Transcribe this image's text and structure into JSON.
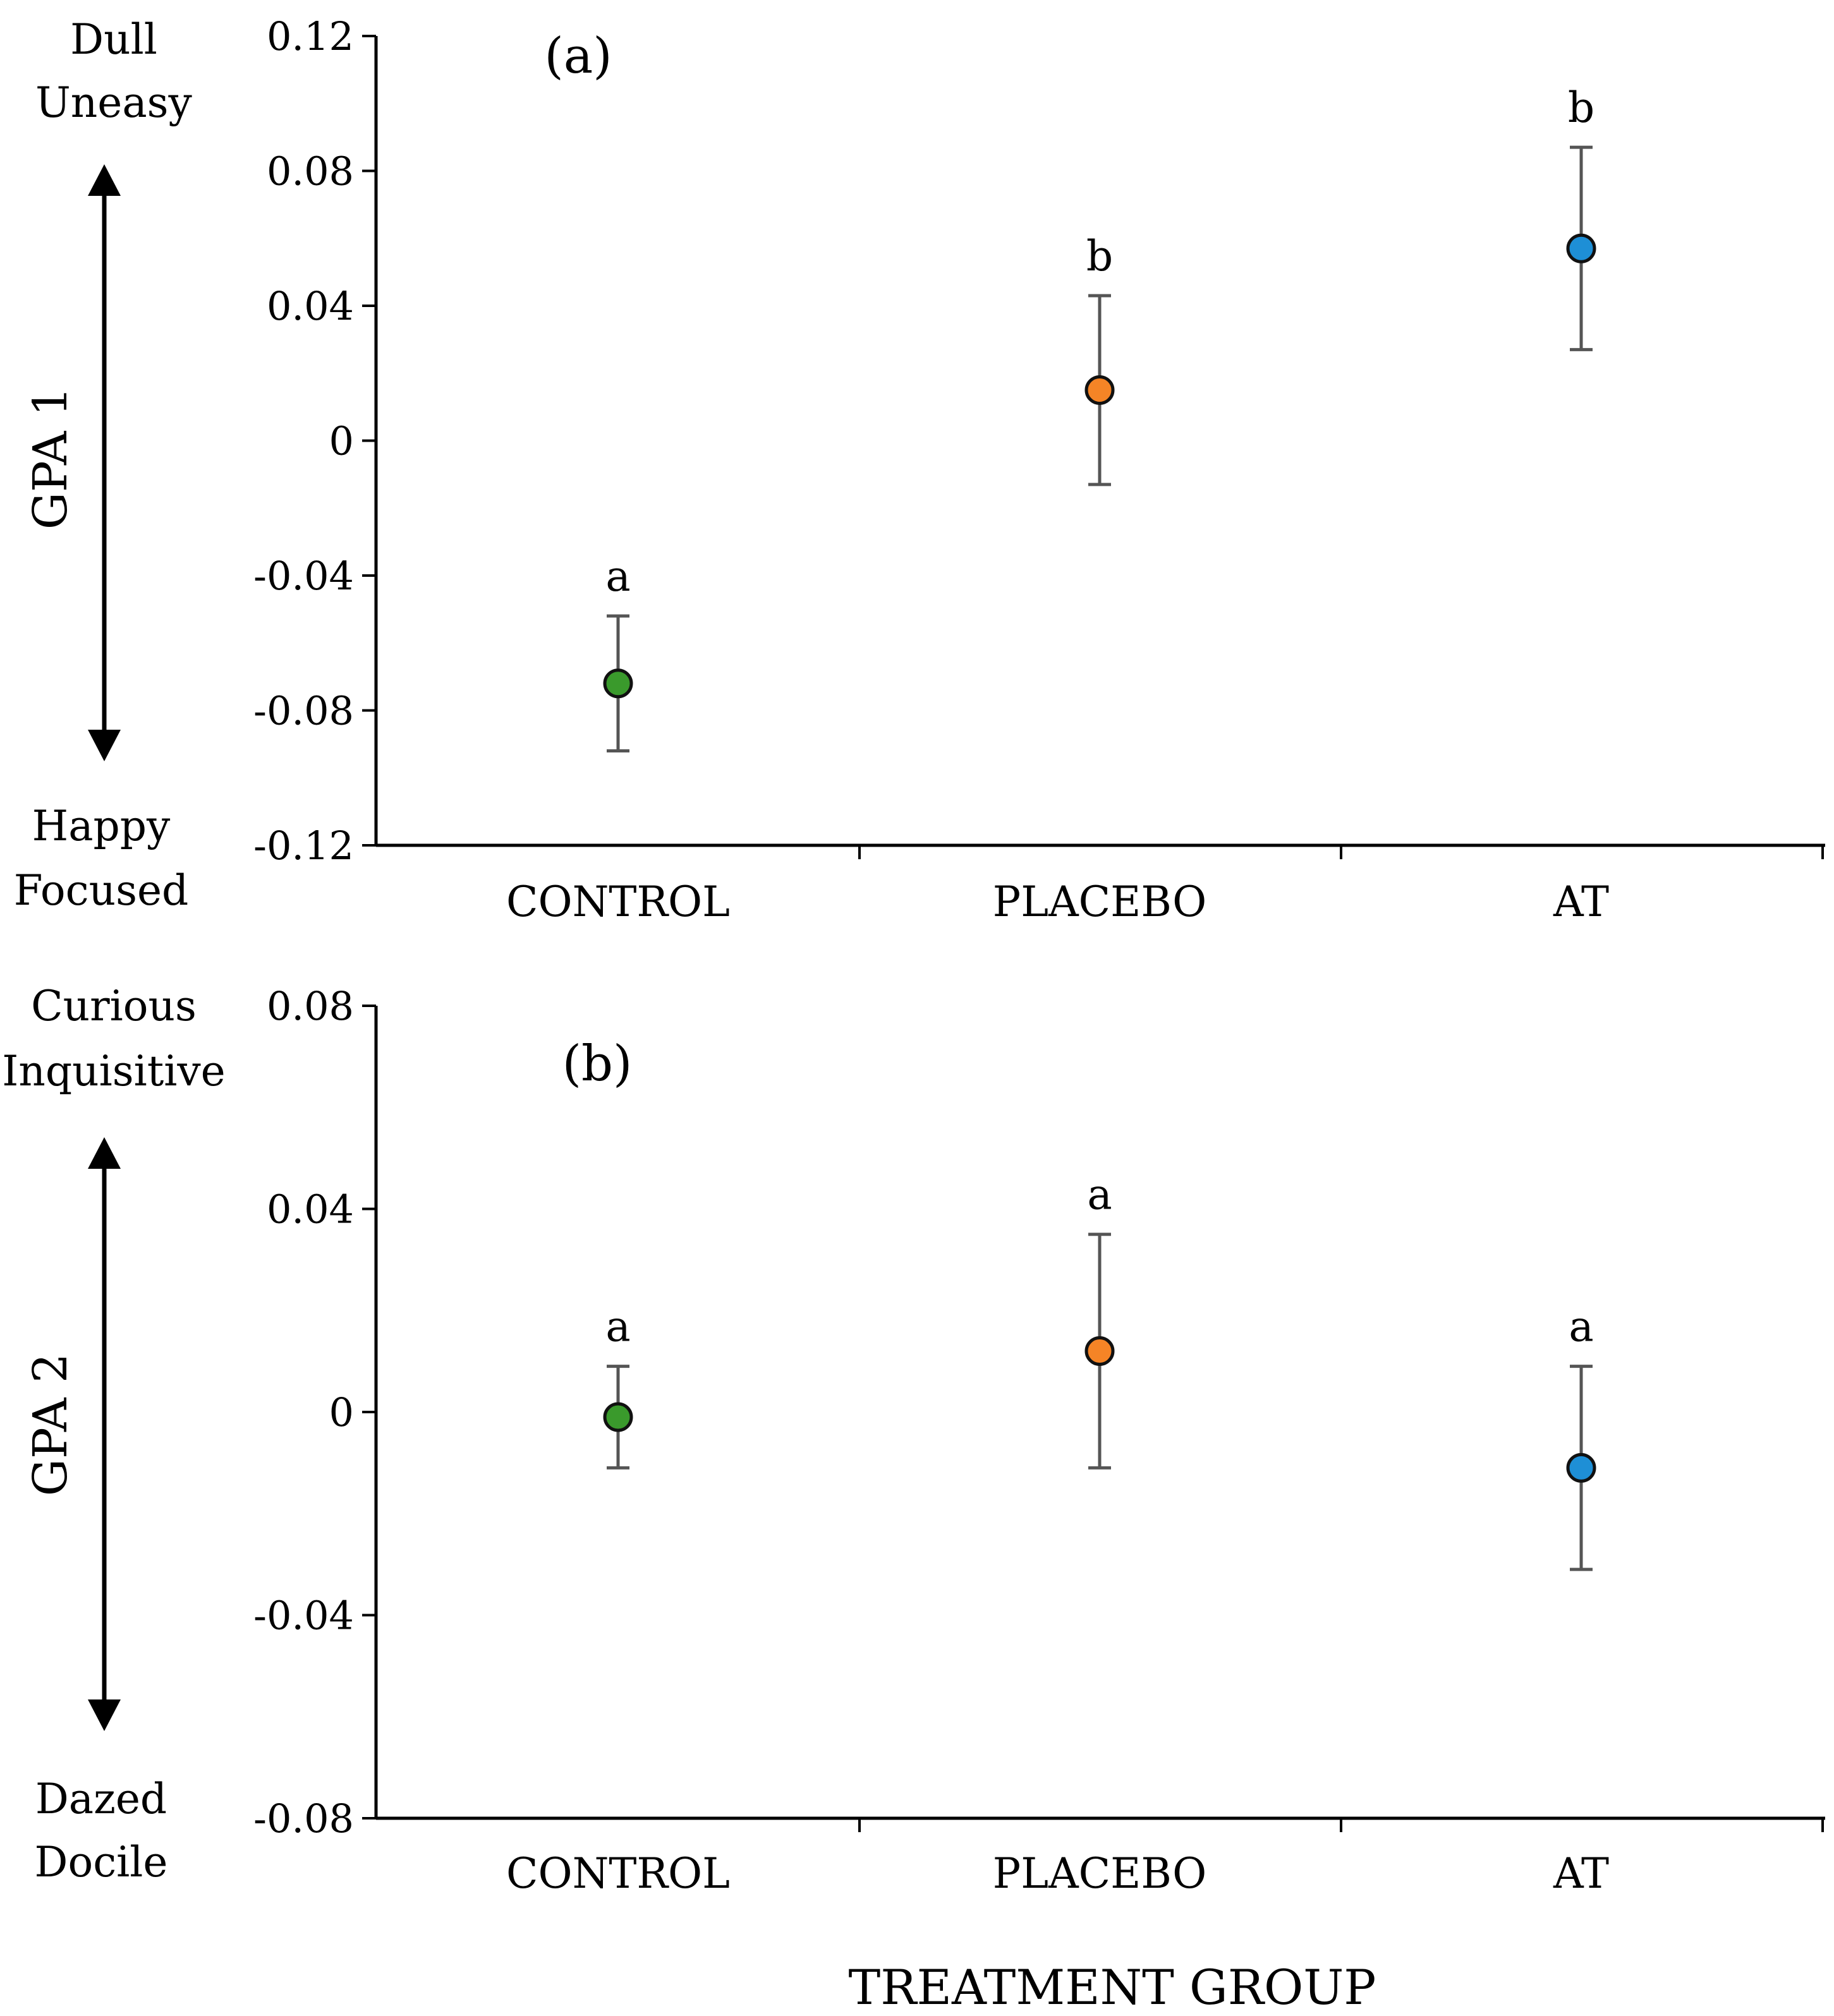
{
  "x_axis_title": "TREATMENT GROUP",
  "colors": {
    "CONTROL": "#3a9a2c",
    "PLACEBO": "#f58426",
    "AT": "#1e8fd6",
    "error_bar": "#555555",
    "axis": "#000000"
  },
  "chart_data": [
    {
      "type": "scatter",
      "panel_label": "(a)",
      "ylabel": "GPA 1",
      "ylim": [
        -0.12,
        0.12
      ],
      "yticks": [
        "0.12",
        "0.08",
        "0.04",
        "0",
        "-0.04",
        "-0.08",
        "-0.12"
      ],
      "pole_top": [
        "Dull",
        "Uneasy"
      ],
      "pole_bottom": [
        "Happy",
        "Focused"
      ],
      "categories": [
        "CONTROL",
        "PLACEBO",
        "AT"
      ],
      "values": [
        -0.072,
        0.015,
        0.057
      ],
      "err_low": [
        -0.092,
        -0.013,
        0.027
      ],
      "err_high": [
        -0.052,
        0.043,
        0.087
      ],
      "letters": [
        "a",
        "b",
        "b"
      ]
    },
    {
      "type": "scatter",
      "panel_label": "(b)",
      "ylabel": "GPA 2",
      "ylim": [
        -0.08,
        0.08
      ],
      "yticks": [
        "0.08",
        "0.04",
        "0",
        "-0.04",
        "-0.08"
      ],
      "pole_top": [
        "Curious",
        "Inquisitive"
      ],
      "pole_bottom": [
        "Dazed",
        "Docile"
      ],
      "categories": [
        "CONTROL",
        "PLACEBO",
        "AT"
      ],
      "values": [
        -0.001,
        0.012,
        -0.011
      ],
      "err_low": [
        -0.011,
        -0.011,
        -0.031
      ],
      "err_high": [
        0.009,
        0.035,
        0.009
      ],
      "letters": [
        "a",
        "a",
        "a"
      ]
    }
  ]
}
